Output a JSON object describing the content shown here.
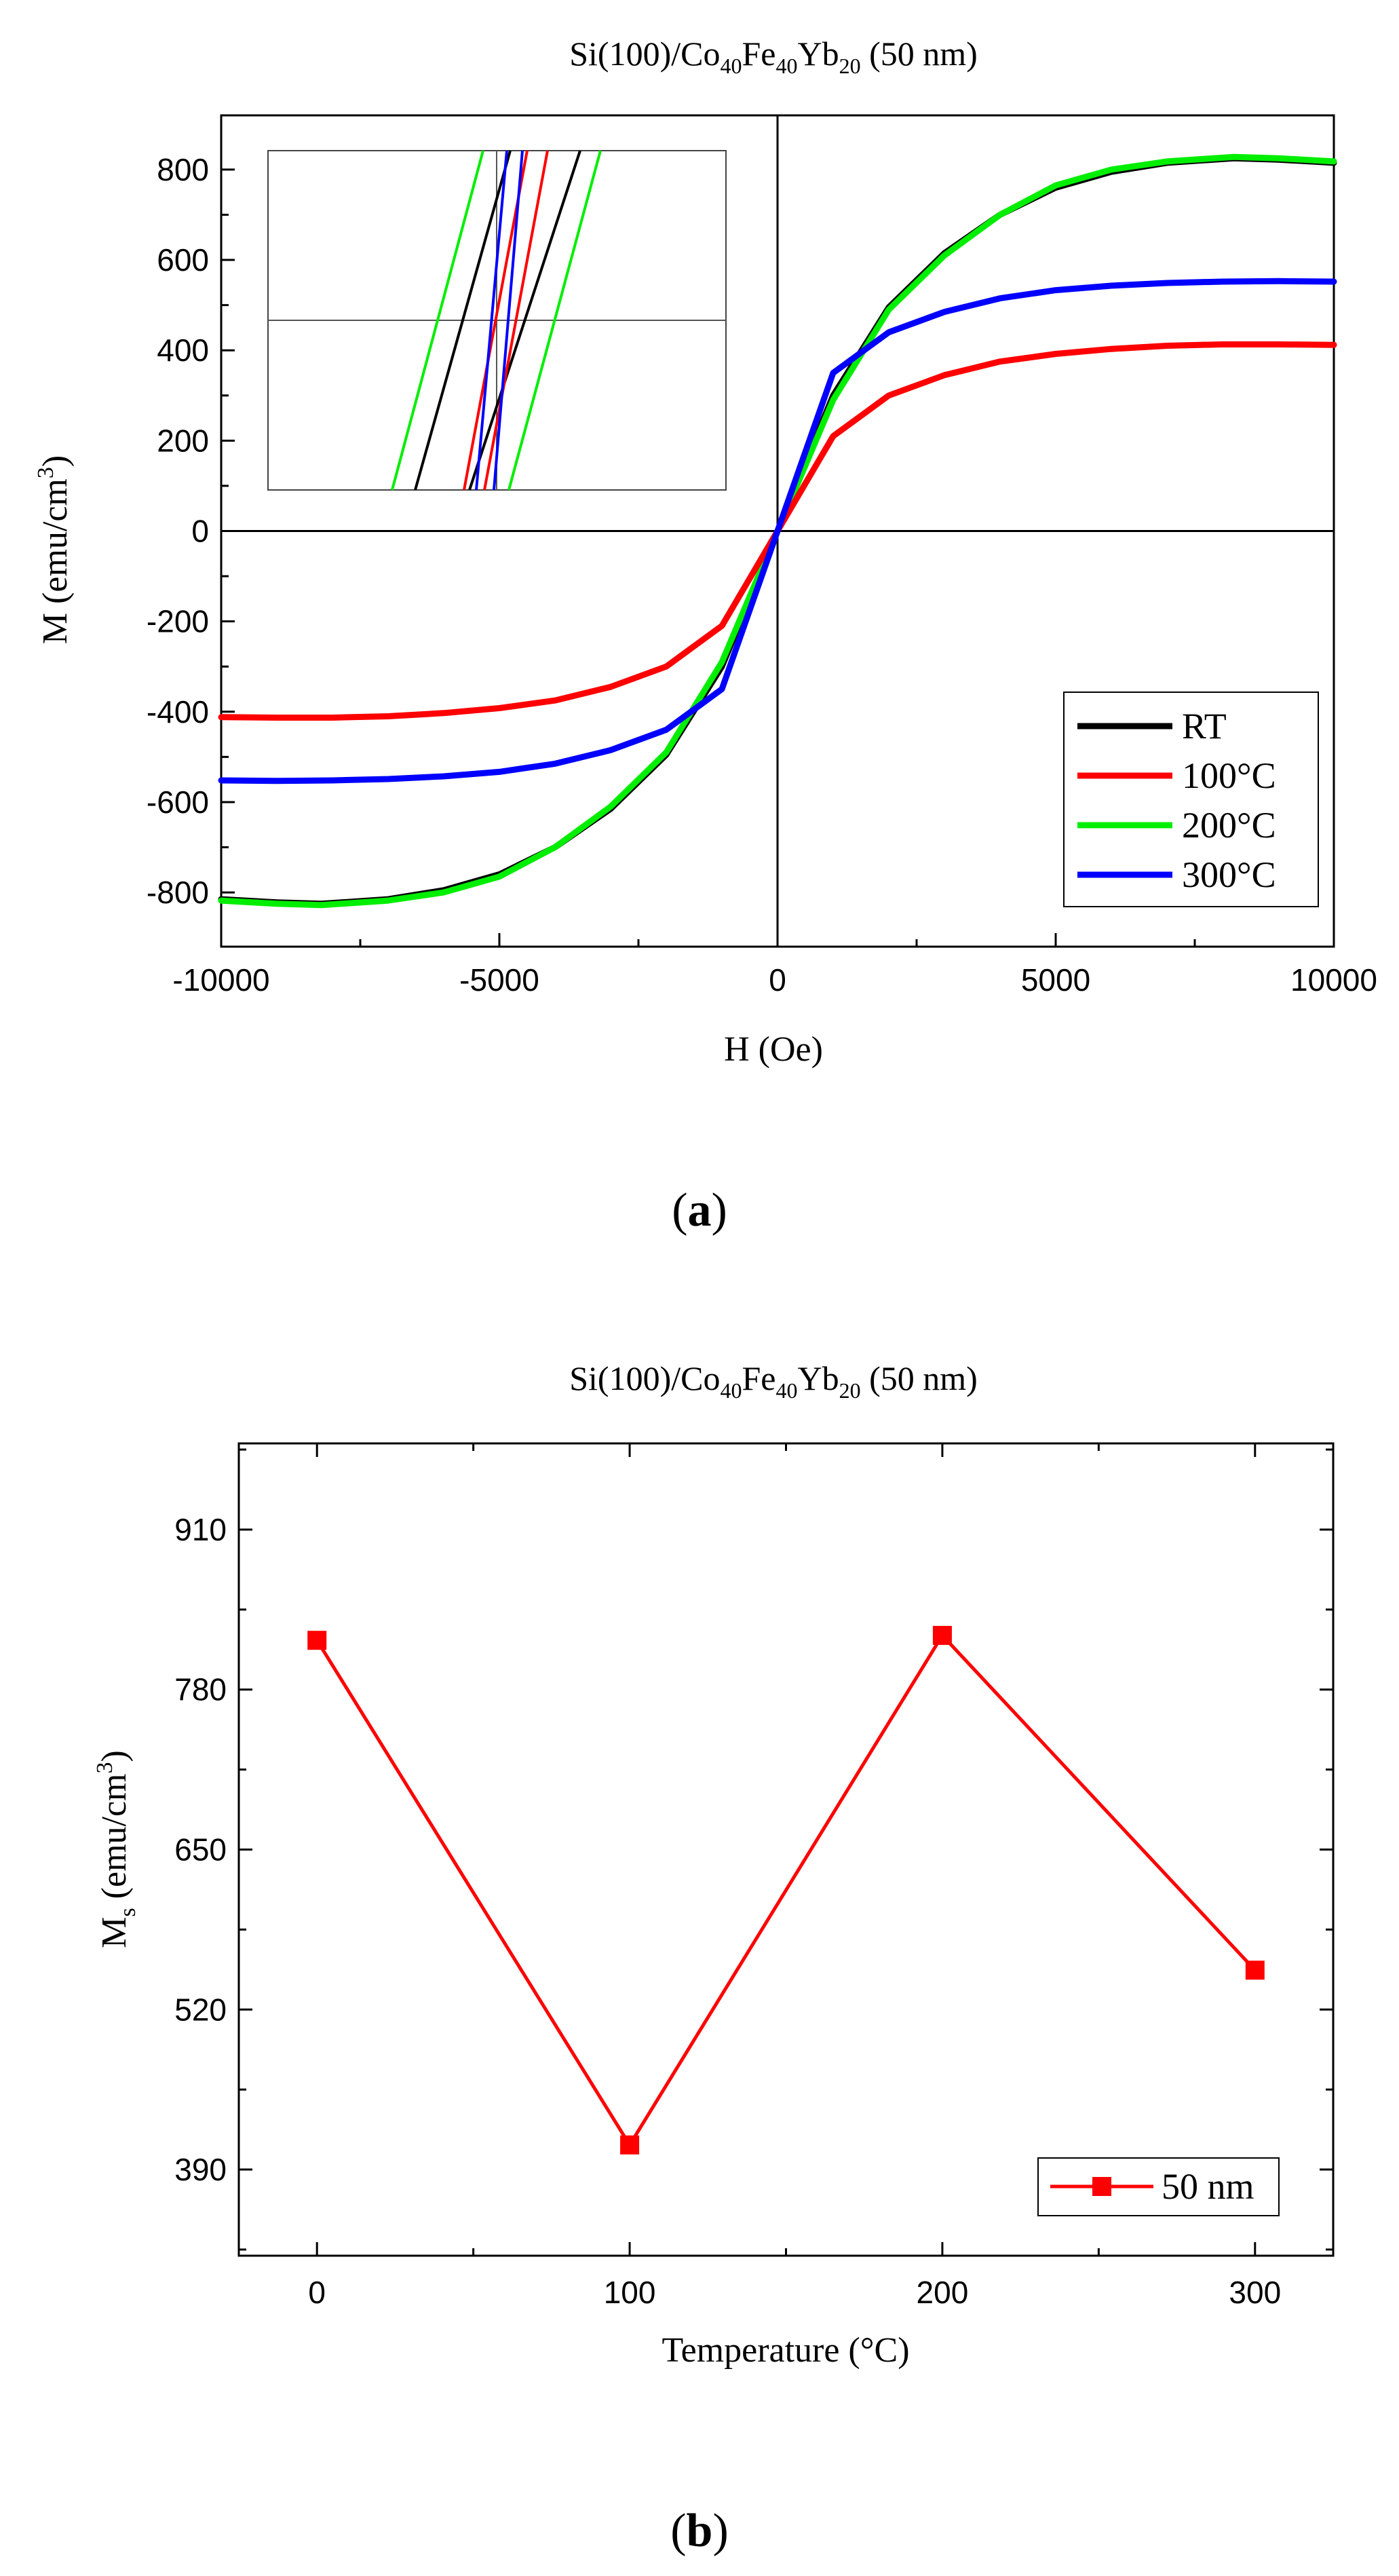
{
  "figure": {
    "panel_a_label_open": "(",
    "panel_a_label_letter": "a",
    "panel_a_label_close": ")",
    "panel_b_label_open": "(",
    "panel_b_label_letter": "b",
    "panel_b_label_close": ")"
  },
  "chart_data": [
    {
      "type": "line",
      "title_parts": [
        "Si(100)/Co",
        "40",
        "Fe",
        "40",
        "Yb",
        "20",
        " (50 nm)"
      ],
      "xlabel": "H (Oe)",
      "ylabel_parts": [
        "M (emu/cm",
        "3",
        ")"
      ],
      "xlim": [
        -10000,
        10000
      ],
      "ylim": [
        -920,
        920
      ],
      "xticks": [
        -10000,
        -5000,
        0,
        5000,
        10000
      ],
      "yticks": [
        -800,
        -600,
        -400,
        -200,
        0,
        200,
        400,
        600,
        800
      ],
      "legend_position": "bottom-right",
      "has_inset": true,
      "series": [
        {
          "name": "RT",
          "color": "#000000",
          "x": [
            -10000,
            -9000,
            -8200,
            -7000,
            -6000,
            -5000,
            -4000,
            -3000,
            -2000,
            -1000,
            0,
            1000,
            2000,
            3000,
            4000,
            5000,
            6000,
            7000,
            8200,
            9000,
            10000
          ],
          "y": [
            -815,
            -822,
            -825,
            -815,
            -795,
            -760,
            -700,
            -615,
            -495,
            -300,
            0,
            300,
            495,
            615,
            700,
            760,
            795,
            815,
            825,
            822,
            815
          ]
        },
        {
          "name": "100°C",
          "color": "#ff0000",
          "x": [
            -10000,
            -9000,
            -8000,
            -7000,
            -6000,
            -5000,
            -4000,
            -3000,
            -2000,
            -1000,
            0,
            1000,
            2000,
            3000,
            4000,
            5000,
            6000,
            7000,
            8000,
            9000,
            10000
          ],
          "y": [
            -412,
            -413,
            -413,
            -410,
            -403,
            -392,
            -375,
            -345,
            -300,
            -210,
            0,
            210,
            300,
            345,
            375,
            392,
            403,
            410,
            413,
            413,
            412
          ]
        },
        {
          "name": "200°C",
          "color": "#00ee00",
          "x": [
            -10000,
            -9000,
            -8200,
            -7000,
            -6000,
            -5000,
            -4000,
            -3000,
            -2000,
            -1000,
            0,
            1000,
            2000,
            3000,
            4000,
            5000,
            6000,
            7000,
            8200,
            9000,
            10000
          ],
          "y": [
            -818,
            -825,
            -828,
            -818,
            -800,
            -765,
            -700,
            -610,
            -490,
            -290,
            0,
            290,
            490,
            610,
            700,
            765,
            800,
            818,
            828,
            825,
            818
          ]
        },
        {
          "name": "300°C",
          "color": "#0000ff",
          "x": [
            -10000,
            -9000,
            -8000,
            -7000,
            -6000,
            -5000,
            -4000,
            -3000,
            -2000,
            -1000,
            0,
            1000,
            2000,
            3000,
            4000,
            5000,
            6000,
            7000,
            8000,
            9000,
            10000
          ],
          "y": [
            -552,
            -553,
            -552,
            -549,
            -543,
            -533,
            -515,
            -485,
            -440,
            -350,
            0,
            350,
            440,
            485,
            515,
            533,
            543,
            549,
            552,
            553,
            552
          ]
        }
      ]
    },
    {
      "type": "line",
      "title_parts": [
        "Si(100)/Co",
        "40",
        "Fe",
        "40",
        "Yb",
        "20",
        " (50 nm)"
      ],
      "xlabel": "Temperature (°C)",
      "ylabel_parts": [
        "M",
        "s",
        " (emu/cm",
        "3",
        ")"
      ],
      "xlim": [
        -25,
        325
      ],
      "ylim": [
        320,
        980
      ],
      "xticks": [
        0,
        100,
        200,
        300
      ],
      "yticks": [
        390,
        520,
        650,
        780,
        910
      ],
      "legend_position": "bottom-right",
      "series": [
        {
          "name": "50 nm",
          "color": "#ff0000",
          "marker": "square",
          "x": [
            0,
            100,
            200,
            300
          ],
          "y": [
            820,
            410,
            824,
            552
          ]
        }
      ]
    }
  ]
}
